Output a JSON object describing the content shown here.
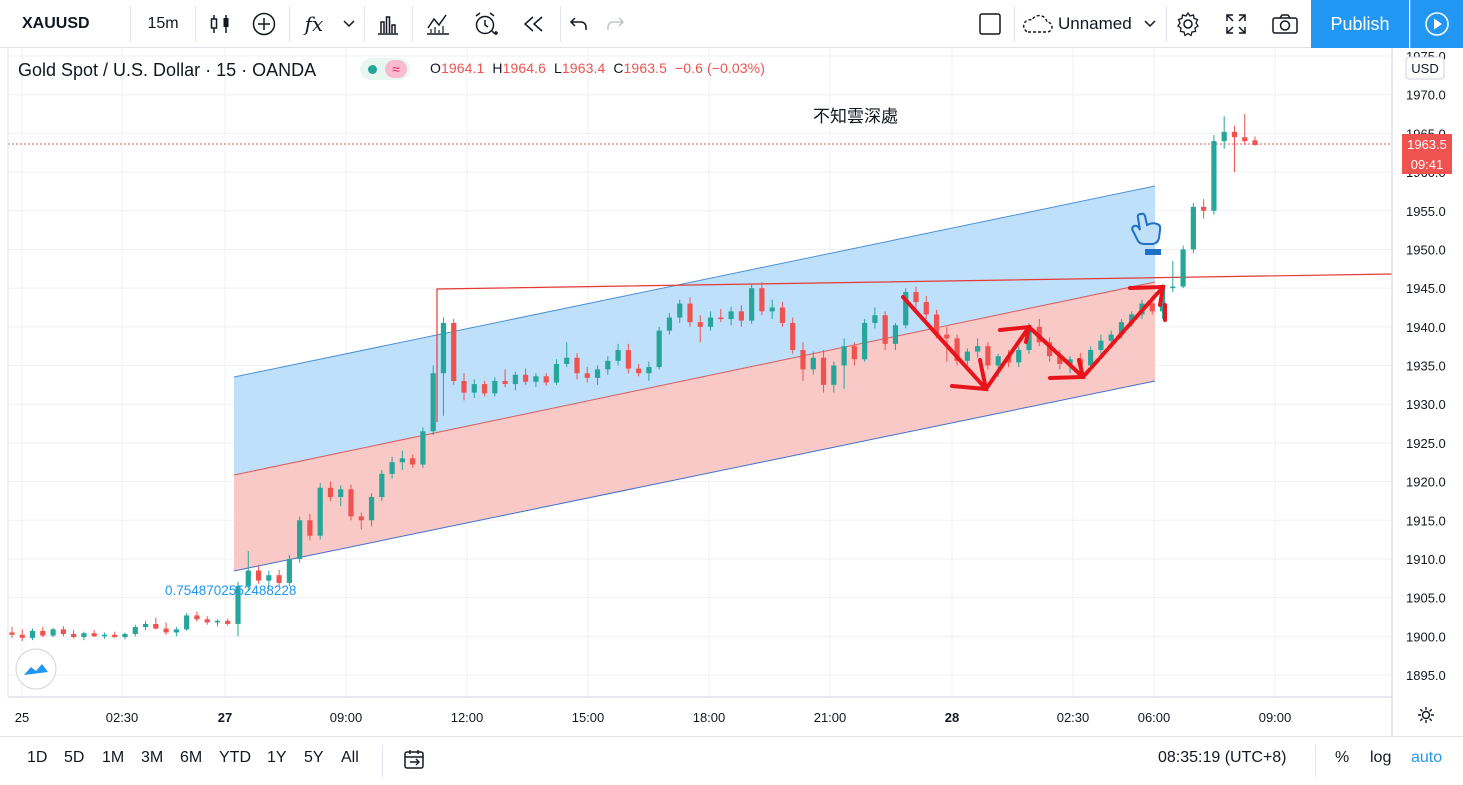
{
  "toolbar": {
    "symbol": "XAUUSD",
    "interval": "15m",
    "indicator_fx": "fx",
    "layout_name": "Unnamed",
    "publish_label": "Publish"
  },
  "legend": {
    "title": "Gold Spot / U.S. Dollar · 15 · OANDA",
    "open_key": "O",
    "open": "1964.1",
    "high_key": "H",
    "high": "1964.6",
    "low_key": "L",
    "low": "1963.4",
    "close_key": "C",
    "close": "1963.5",
    "change": "−0.6 (−0.03%)",
    "pill_symbol": "≈"
  },
  "chart_data": {
    "type": "candlestick",
    "currency": "USD",
    "annotation_text": "不知雲深處",
    "fib_label": "0.7548702552488228",
    "last_price": "1963.5",
    "countdown": "09:41",
    "y_ticks": [
      "1975.0",
      "1970.0",
      "1965.0",
      "1960.0",
      "1955.0",
      "1950.0",
      "1945.0",
      "1940.0",
      "1935.0",
      "1930.0",
      "1925.0",
      "1920.0",
      "1915.0",
      "1910.0",
      "1905.0",
      "1900.0",
      "1895.0"
    ],
    "x_ticks": [
      "25",
      "02:30",
      "27",
      "09:00",
      "12:00",
      "15:00",
      "18:00",
      "21:00",
      "28",
      "02:30",
      "06:00",
      "09:00"
    ],
    "ylim": [
      1890,
      1977
    ],
    "candles": [
      [
        1900.5,
        1901.2,
        1899.8,
        1900.2
      ],
      [
        1900.2,
        1900.9,
        1899.4,
        1899.8
      ],
      [
        1899.8,
        1901.0,
        1899.5,
        1900.7
      ],
      [
        1900.7,
        1901.2,
        1899.9,
        1900.1
      ],
      [
        1900.1,
        1901.1,
        1899.9,
        1900.9
      ],
      [
        1900.9,
        1901.3,
        1900.0,
        1900.3
      ],
      [
        1900.3,
        1900.8,
        1899.7,
        1899.9
      ],
      [
        1899.9,
        1900.6,
        1899.5,
        1900.4
      ],
      [
        1900.4,
        1900.8,
        1899.9,
        1900.0
      ],
      [
        1900.0,
        1900.5,
        1899.7,
        1900.2
      ],
      [
        1900.2,
        1900.6,
        1899.8,
        1899.9
      ],
      [
        1899.9,
        1900.5,
        1899.6,
        1900.3
      ],
      [
        1900.3,
        1901.5,
        1900.0,
        1901.2
      ],
      [
        1901.2,
        1902.0,
        1900.8,
        1901.6
      ],
      [
        1901.6,
        1902.4,
        1900.9,
        1901.0
      ],
      [
        1901.0,
        1901.8,
        1900.2,
        1900.5
      ],
      [
        1900.5,
        1901.2,
        1900.0,
        1900.9
      ],
      [
        1900.9,
        1903.0,
        1900.7,
        1902.7
      ],
      [
        1902.7,
        1903.2,
        1901.9,
        1902.2
      ],
      [
        1902.2,
        1902.6,
        1901.5,
        1901.8
      ],
      [
        1901.8,
        1902.2,
        1901.3,
        1902.0
      ],
      [
        1902.0,
        1902.3,
        1901.4,
        1901.6
      ],
      [
        1901.6,
        1907.0,
        1900.0,
        1906.5
      ],
      [
        1906.5,
        1911.0,
        1905.8,
        1908.5
      ],
      [
        1908.5,
        1909.2,
        1906.8,
        1907.2
      ],
      [
        1907.2,
        1908.5,
        1906.0,
        1907.9
      ],
      [
        1907.9,
        1908.6,
        1906.5,
        1906.9
      ],
      [
        1906.9,
        1910.5,
        1906.5,
        1910.0
      ],
      [
        1910.0,
        1915.5,
        1909.5,
        1915.0
      ],
      [
        1915.0,
        1915.8,
        1912.4,
        1913.0
      ],
      [
        1913.0,
        1919.8,
        1912.5,
        1919.2
      ],
      [
        1919.2,
        1920.0,
        1917.5,
        1918.0
      ],
      [
        1918.0,
        1919.5,
        1916.8,
        1919.0
      ],
      [
        1919.0,
        1919.6,
        1915.0,
        1915.5
      ],
      [
        1915.5,
        1916.0,
        1913.8,
        1915.0
      ],
      [
        1915.0,
        1918.5,
        1914.2,
        1918.0
      ],
      [
        1918.0,
        1921.5,
        1917.5,
        1921.0
      ],
      [
        1921.0,
        1923.2,
        1920.4,
        1922.5
      ],
      [
        1922.5,
        1924.0,
        1921.5,
        1923.0
      ],
      [
        1923.0,
        1923.5,
        1921.8,
        1922.2
      ],
      [
        1922.2,
        1927.0,
        1921.8,
        1926.5
      ],
      [
        1926.5,
        1935.0,
        1926.0,
        1934.0
      ],
      [
        1934.0,
        1941.2,
        1928.5,
        1940.5
      ],
      [
        1940.5,
        1941.0,
        1932.5,
        1933.0
      ],
      [
        1933.0,
        1934.0,
        1930.5,
        1931.5
      ],
      [
        1931.5,
        1933.2,
        1930.8,
        1932.6
      ],
      [
        1932.6,
        1933.0,
        1931.0,
        1931.4
      ],
      [
        1931.4,
        1933.5,
        1931.0,
        1933.0
      ],
      [
        1933.0,
        1934.5,
        1932.2,
        1932.6
      ],
      [
        1932.6,
        1934.2,
        1931.8,
        1933.8
      ],
      [
        1933.8,
        1934.6,
        1932.5,
        1932.9
      ],
      [
        1932.9,
        1934.0,
        1932.2,
        1933.6
      ],
      [
        1933.6,
        1934.0,
        1932.4,
        1932.8
      ],
      [
        1932.8,
        1935.8,
        1932.5,
        1935.2
      ],
      [
        1935.2,
        1938.0,
        1934.8,
        1936.0
      ],
      [
        1936.0,
        1936.6,
        1933.2,
        1934.0
      ],
      [
        1934.0,
        1934.8,
        1932.8,
        1933.4
      ],
      [
        1933.4,
        1935.0,
        1932.5,
        1934.5
      ],
      [
        1934.5,
        1936.2,
        1933.8,
        1935.6
      ],
      [
        1935.6,
        1937.8,
        1935.0,
        1937.0
      ],
      [
        1937.0,
        1937.8,
        1934.0,
        1934.6
      ],
      [
        1934.6,
        1935.2,
        1933.6,
        1934.0
      ],
      [
        1934.0,
        1935.5,
        1933.0,
        1934.8
      ],
      [
        1934.8,
        1940.0,
        1934.5,
        1939.5
      ],
      [
        1939.5,
        1941.8,
        1939.0,
        1941.2
      ],
      [
        1941.2,
        1943.5,
        1940.5,
        1943.0
      ],
      [
        1943.0,
        1943.8,
        1940.0,
        1940.6
      ],
      [
        1940.6,
        1941.5,
        1938.0,
        1940.0
      ],
      [
        1940.0,
        1942.0,
        1939.5,
        1941.2
      ],
      [
        1941.2,
        1942.3,
        1940.6,
        1941.0
      ],
      [
        1941.0,
        1942.6,
        1940.2,
        1942.0
      ],
      [
        1942.0,
        1942.8,
        1940.0,
        1940.8
      ],
      [
        1940.8,
        1945.5,
        1940.4,
        1945.0
      ],
      [
        1945.0,
        1945.8,
        1941.5,
        1942.0
      ],
      [
        1942.0,
        1943.5,
        1941.0,
        1942.5
      ],
      [
        1942.5,
        1943.2,
        1940.0,
        1940.5
      ],
      [
        1940.5,
        1941.2,
        1936.5,
        1937.0
      ],
      [
        1937.0,
        1938.0,
        1933.0,
        1934.5
      ],
      [
        1934.5,
        1936.8,
        1933.8,
        1936.0
      ],
      [
        1936.0,
        1937.0,
        1931.5,
        1932.5
      ],
      [
        1932.5,
        1935.5,
        1931.5,
        1935.0
      ],
      [
        1935.0,
        1938.5,
        1932.0,
        1937.5
      ],
      [
        1937.5,
        1938.0,
        1935.0,
        1935.8
      ],
      [
        1935.8,
        1941.0,
        1935.5,
        1940.5
      ],
      [
        1940.5,
        1942.5,
        1939.8,
        1941.5
      ],
      [
        1941.5,
        1942.0,
        1937.0,
        1937.8
      ],
      [
        1937.8,
        1940.5,
        1937.0,
        1940.2
      ],
      [
        1940.2,
        1945.0,
        1939.8,
        1944.5
      ],
      [
        1944.5,
        1945.2,
        1942.5,
        1943.2
      ],
      [
        1943.2,
        1944.0,
        1941.0,
        1941.6
      ],
      [
        1941.6,
        1942.2,
        1938.5,
        1939.0
      ],
      [
        1939.0,
        1940.0,
        1935.5,
        1938.5
      ],
      [
        1938.5,
        1939.0,
        1935.0,
        1935.6
      ],
      [
        1935.6,
        1937.2,
        1935.0,
        1936.8
      ],
      [
        1936.8,
        1938.5,
        1936.0,
        1937.5
      ],
      [
        1937.5,
        1938.0,
        1934.5,
        1935.0
      ],
      [
        1935.0,
        1936.5,
        1933.5,
        1936.2
      ],
      [
        1936.2,
        1937.0,
        1934.8,
        1935.4
      ],
      [
        1935.4,
        1937.5,
        1934.8,
        1937.0
      ],
      [
        1937.0,
        1940.5,
        1936.5,
        1940.0
      ],
      [
        1940.0,
        1941.0,
        1937.5,
        1938.0
      ],
      [
        1938.0,
        1938.6,
        1935.5,
        1936.2
      ],
      [
        1936.2,
        1937.0,
        1934.5,
        1935.2
      ],
      [
        1935.2,
        1936.2,
        1934.0,
        1935.8
      ],
      [
        1935.8,
        1936.6,
        1934.5,
        1935.0
      ],
      [
        1935.0,
        1937.5,
        1934.6,
        1937.0
      ],
      [
        1937.0,
        1939.0,
        1936.5,
        1938.2
      ],
      [
        1938.2,
        1939.5,
        1937.5,
        1939.0
      ],
      [
        1939.0,
        1941.0,
        1938.5,
        1940.6
      ],
      [
        1940.6,
        1942.0,
        1940.0,
        1941.6
      ],
      [
        1941.6,
        1943.5,
        1941.0,
        1943.0
      ],
      [
        1943.0,
        1943.8,
        1941.6,
        1942.0
      ],
      [
        1942.0,
        1945.5,
        1941.0,
        1945.0
      ],
      [
        1945.0,
        1948.5,
        1944.5,
        1945.2
      ],
      [
        1945.2,
        1950.5,
        1945.0,
        1950.0
      ],
      [
        1950.0,
        1956.0,
        1949.5,
        1955.5
      ],
      [
        1955.5,
        1956.5,
        1954.0,
        1955.0
      ],
      [
        1955.0,
        1964.8,
        1954.5,
        1964.0
      ],
      [
        1964.0,
        1967.2,
        1963.0,
        1965.2
      ],
      [
        1965.2,
        1966.0,
        1960.0,
        1964.5
      ],
      [
        1964.5,
        1967.5,
        1963.5,
        1964.0
      ],
      [
        1964.1,
        1964.6,
        1963.4,
        1963.5
      ]
    ]
  },
  "bottombar": {
    "ranges": [
      "1D",
      "5D",
      "1M",
      "3M",
      "6M",
      "YTD",
      "1Y",
      "5Y",
      "All"
    ],
    "clock": "08:35:19 (UTC+8)",
    "percent": "%",
    "log": "log",
    "auto": "auto"
  },
  "colors": {
    "up": "#26a69a",
    "down": "#ef5350",
    "accent": "#2196f3",
    "channel_upper_fill": "#bbdefb",
    "channel_lower_fill": "#f8c6c4"
  }
}
